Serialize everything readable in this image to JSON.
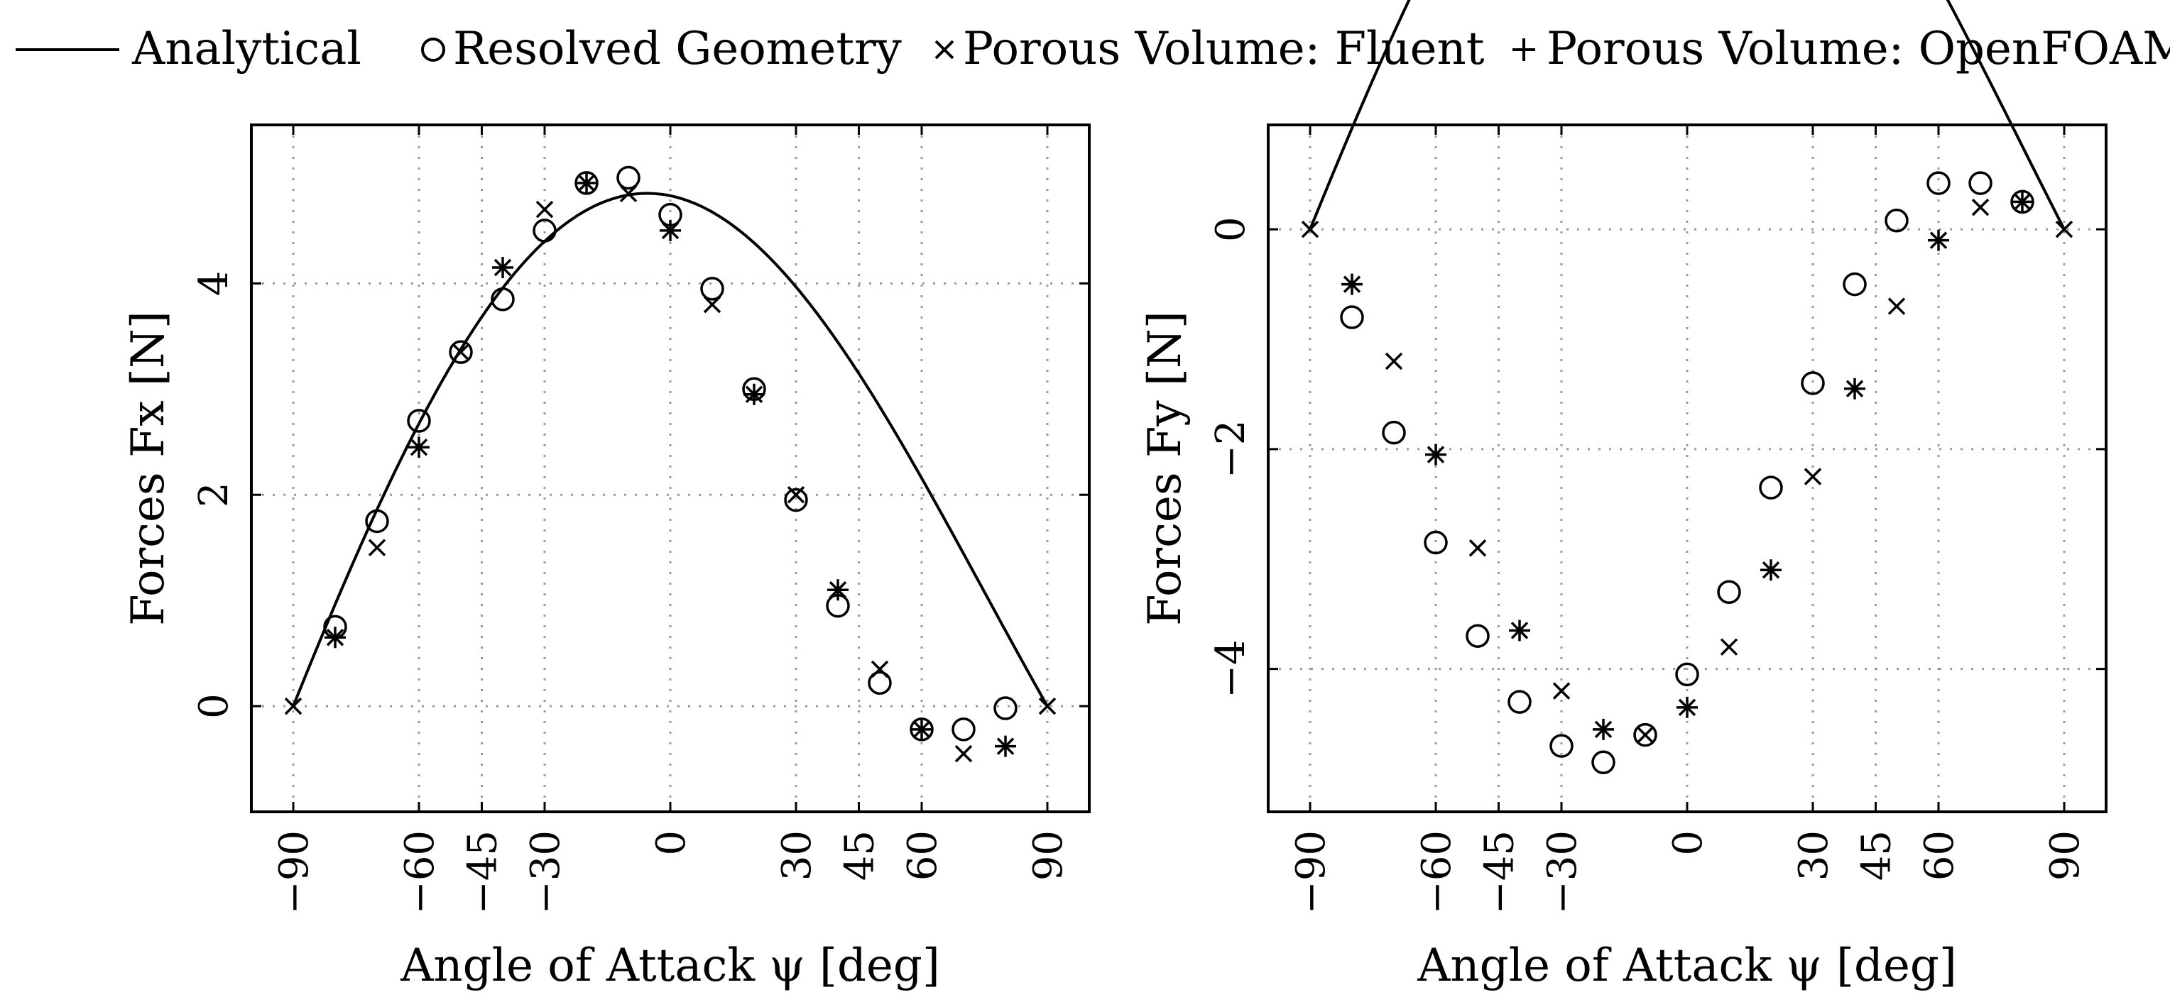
{
  "legend": [
    {
      "label": "Analytical",
      "marker": "line"
    },
    {
      "label": "Resolved Geometry",
      "marker": "circle"
    },
    {
      "label": "Porous Volume: Fluent",
      "marker": "cross"
    },
    {
      "label": "Porous Volume: OpenFOAM",
      "marker": "plus"
    }
  ],
  "chart_data": [
    {
      "type": "line",
      "title": "",
      "xlabel": "Angle of Attack ψ [deg]",
      "ylabel": "Forces Fx [N]",
      "xlim": [
        -100,
        100
      ],
      "ylim": [
        -1,
        5.5
      ],
      "xticks": [
        -90,
        -60,
        -45,
        -30,
        0,
        30,
        45,
        60,
        90
      ],
      "xtick_labels": [
        "−90",
        "−60",
        "−45",
        "−30",
        "0",
        "30",
        "45",
        "60",
        "90"
      ],
      "yticks": [
        0,
        2,
        4
      ],
      "ytick_labels": [
        "0",
        "2",
        "4"
      ],
      "grid": true,
      "analytical": {
        "name": "Analytical",
        "amplitude": 5,
        "peak_deg": -15,
        "offset_deg": 90
      },
      "series": [
        {
          "name": "Resolved Geometry",
          "marker": "circle",
          "x": [
            -80,
            -70,
            -60,
            -50,
            -40,
            -30,
            -20,
            -10,
            0,
            10,
            20,
            30,
            40,
            50,
            60,
            70,
            80
          ],
          "y": [
            0.75,
            1.75,
            2.7,
            3.35,
            3.85,
            4.5,
            4.95,
            5.0,
            4.65,
            3.95,
            3.0,
            1.95,
            0.95,
            0.22,
            -0.22,
            -0.22,
            -0.02
          ]
        },
        {
          "name": "Porous Volume: Fluent",
          "marker": "cross",
          "x": [
            -90,
            -80,
            -70,
            -60,
            -50,
            -40,
            -30,
            -20,
            -10,
            0,
            10,
            20,
            30,
            40,
            50,
            60,
            70,
            80,
            90
          ],
          "y": [
            0.0,
            0.65,
            1.5,
            2.45,
            3.35,
            4.15,
            4.7,
            4.95,
            4.85,
            4.5,
            3.8,
            2.95,
            2.0,
            1.1,
            0.35,
            -0.22,
            -0.45,
            -0.38,
            0.0
          ]
        },
        {
          "name": "Porous Volume: OpenFOAM",
          "marker": "plus",
          "x": [
            -80,
            -60,
            -40,
            -20,
            0,
            20,
            40,
            60,
            80
          ],
          "y": [
            0.65,
            2.45,
            4.15,
            4.95,
            4.5,
            2.95,
            1.1,
            -0.22,
            -0.38
          ]
        }
      ]
    },
    {
      "type": "line",
      "title": "",
      "xlabel": "Angle of Attack ψ [deg]",
      "ylabel": "Forces Fy [N]",
      "xlim": [
        -100,
        100
      ],
      "ylim": [
        -5.3,
        0.95
      ],
      "xticks": [
        -90,
        -60,
        -45,
        -30,
        0,
        30,
        45,
        60,
        90
      ],
      "xtick_labels": [
        "−90",
        "−60",
        "−45",
        "−30",
        "0",
        "30",
        "45",
        "60",
        "90"
      ],
      "yticks": [
        -4,
        -2,
        0
      ],
      "ytick_labels": [
        "−4",
        "−2",
        "0"
      ],
      "grid": true,
      "analytical": {
        "name": "Analytical",
        "amplitude": 4.9,
        "peak_deg": -10,
        "offset_deg": 90
      },
      "series": [
        {
          "name": "Resolved Geometry",
          "marker": "circle",
          "x": [
            -80,
            -70,
            -60,
            -50,
            -40,
            -30,
            -20,
            -10,
            0,
            10,
            20,
            30,
            40,
            50,
            60,
            70,
            80
          ],
          "y": [
            -0.8,
            -1.85,
            -2.85,
            -3.7,
            -4.3,
            -4.7,
            -4.85,
            -4.6,
            -4.05,
            -3.3,
            -2.35,
            -1.4,
            -0.5,
            0.08,
            0.42,
            0.42,
            0.25
          ]
        },
        {
          "name": "Porous Volume: Fluent",
          "marker": "cross",
          "x": [
            -90,
            -80,
            -70,
            -60,
            -50,
            -40,
            -30,
            -20,
            -10,
            0,
            10,
            20,
            30,
            40,
            50,
            60,
            70,
            80,
            90
          ],
          "y": [
            0.0,
            -0.5,
            -1.2,
            -2.05,
            -2.9,
            -3.65,
            -4.2,
            -4.55,
            -4.6,
            -4.35,
            -3.8,
            -3.1,
            -2.25,
            -1.45,
            -0.7,
            -0.1,
            0.2,
            0.25,
            0.0
          ]
        },
        {
          "name": "Porous Volume: OpenFOAM",
          "marker": "plus",
          "x": [
            -80,
            -60,
            -40,
            -20,
            0,
            20,
            40,
            60,
            80
          ],
          "y": [
            -0.5,
            -2.05,
            -3.65,
            -4.55,
            -4.35,
            -3.1,
            -1.45,
            -0.1,
            0.25
          ]
        }
      ]
    }
  ]
}
